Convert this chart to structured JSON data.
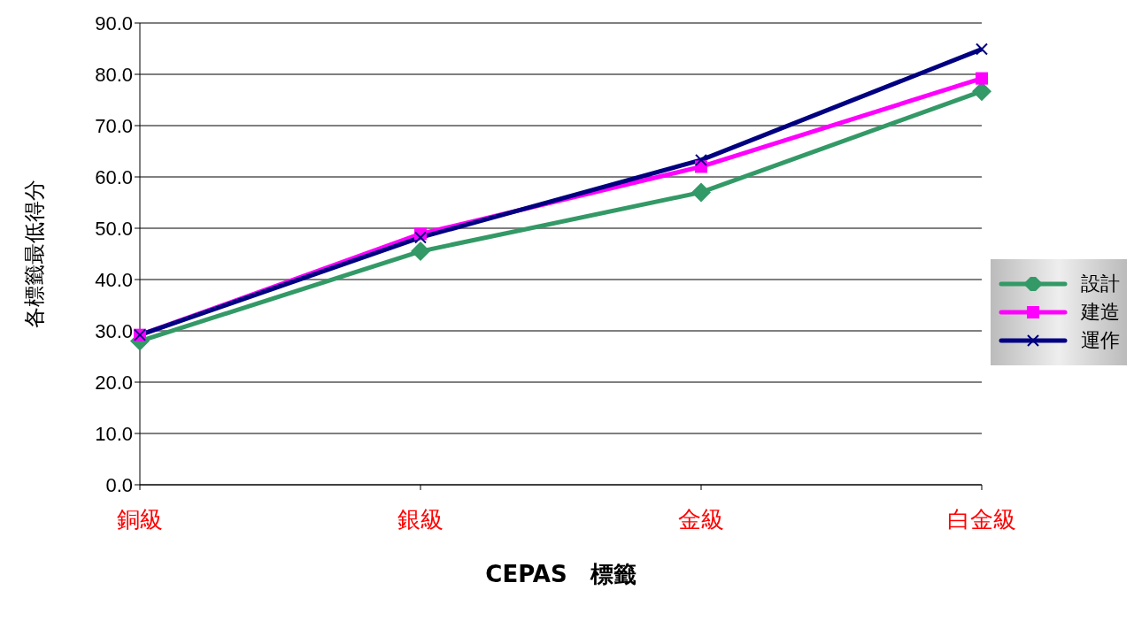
{
  "chart_data": {
    "type": "line",
    "xlabel": "CEPAS　標籤",
    "ylabel": "各標籤最低得分",
    "categories": [
      "銅級",
      "銀級",
      "金級",
      "白金級"
    ],
    "series": [
      {
        "name": "設計",
        "color": "#339966",
        "marker": "diamond",
        "values": [
          28.0,
          45.5,
          57.0,
          76.7
        ]
      },
      {
        "name": "建造",
        "color": "#ff00ff",
        "marker": "square",
        "values": [
          29.2,
          48.9,
          62.0,
          79.2
        ]
      },
      {
        "name": "運作",
        "color": "#000080",
        "marker": "cross",
        "values": [
          29.2,
          48.2,
          63.3,
          84.9
        ]
      }
    ],
    "ylim": [
      0,
      90
    ],
    "yticks": [
      {
        "value": 0,
        "label": "0.0"
      },
      {
        "value": 10,
        "label": "10.0"
      },
      {
        "value": 20,
        "label": "20.0"
      },
      {
        "value": 30,
        "label": "30.0"
      },
      {
        "value": 40,
        "label": "40.0"
      },
      {
        "value": 50,
        "label": "50.0"
      },
      {
        "value": 60,
        "label": "60.0"
      },
      {
        "value": 70,
        "label": "70.0"
      },
      {
        "value": 80,
        "label": "80.0"
      },
      {
        "value": 90,
        "label": "90.0"
      }
    ],
    "grid": "y",
    "legend": "right"
  }
}
